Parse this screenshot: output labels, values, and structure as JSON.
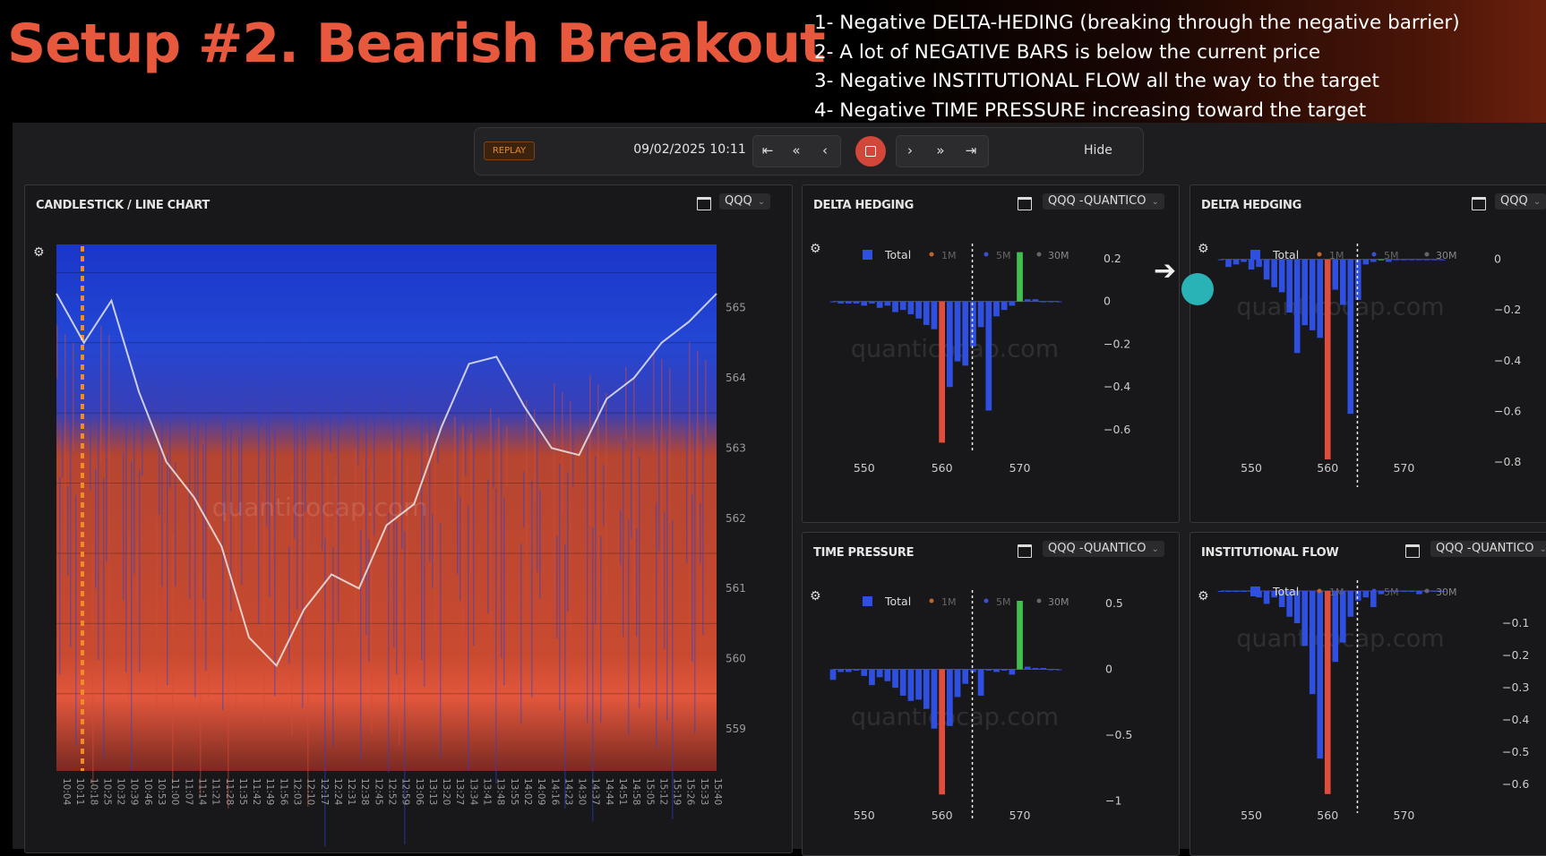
{
  "headline": "Setup #2. Bearish Breakout",
  "notes": [
    "1- Negative DELTA-HEDING (breaking through the negative barrier)",
    "2- A lot of NEGATIVE BARS is below the current price",
    "3- Negative INSTITUTIONAL FLOW all the way to the target",
    "4- Negative TIME PRESSURE increasing toward the target"
  ],
  "toolbar": {
    "replay_badge": "REPLAY",
    "datetime": "09/02/2025 10:11",
    "first_icon": "⇤",
    "fast_back_icon": "«",
    "back_icon": "‹",
    "forward_icon": "›",
    "fast_forward_icon": "»",
    "last_icon": "⇥",
    "hide_label": "Hide"
  },
  "colors": {
    "accent": "#e8583c",
    "positive": "#2f4fe0",
    "negative": "#e24c3a",
    "green": "#3fbf4f"
  },
  "main_chart": {
    "title": "CANDLESTICK / LINE CHART",
    "symbol": "QQQ",
    "watermark": "quanticocap.com",
    "price_ticks": [
      "565",
      "564",
      "563",
      "562",
      "561",
      "560",
      "559"
    ],
    "time_ticks": [
      "10:04",
      "10:11",
      "10:18",
      "10:25",
      "10:32",
      "10:39",
      "10:46",
      "10:53",
      "11:00",
      "11:07",
      "11:14",
      "11:21",
      "11:28",
      "11:35",
      "11:42",
      "11:49",
      "11:56",
      "12:03",
      "12:10",
      "12:17",
      "12:24",
      "12:31",
      "12:38",
      "12:45",
      "12:52",
      "12:59",
      "13:06",
      "13:13",
      "13:20",
      "13:27",
      "13:34",
      "13:41",
      "13:48",
      "13:55",
      "14:02",
      "14:09",
      "14:16",
      "14:23",
      "14:30",
      "14:37",
      "14:44",
      "14:51",
      "14:58",
      "15:05",
      "15:12",
      "15:19",
      "15:26",
      "15:33",
      "15:40"
    ]
  },
  "panels": {
    "delta_hedging_1": {
      "title": "DELTA HEDGING",
      "symbol": "QQQ -QUANTICO",
      "y_ticks": [
        "0.2",
        "0",
        "−0.2",
        "−0.4",
        "−0.6"
      ],
      "x_ticks": [
        "550",
        "560",
        "570"
      ]
    },
    "delta_hedging_2": {
      "title": "DELTA HEDGING",
      "symbol": "QQQ",
      "y_ticks": [
        "0",
        "−0.2",
        "−0.4",
        "−0.6",
        "−0.8"
      ],
      "x_ticks": [
        "550",
        "560",
        "570"
      ]
    },
    "time_pressure": {
      "title": "TIME PRESSURE",
      "symbol": "QQQ -QUANTICO",
      "y_ticks": [
        "0.5",
        "0",
        "−0.5",
        "−1"
      ],
      "x_ticks": [
        "550",
        "560",
        "570"
      ]
    },
    "institutional_flow": {
      "title": "INSTITUTIONAL FLOW",
      "symbol": "QQQ -QUANTICO",
      "y_ticks": [
        "−0.1",
        "−0.2",
        "−0.3",
        "−0.4",
        "−0.5",
        "−0.6"
      ],
      "x_ticks": [
        "550",
        "560",
        "570"
      ]
    }
  },
  "legend": [
    "Total",
    "1M",
    "5M",
    "30M"
  ],
  "watermark": "quanticocap.com",
  "chart_data": [
    {
      "type": "line",
      "title": "CANDLESTICK / LINE CHART",
      "ylim": [
        558.4,
        565.9
      ],
      "series": [
        {
          "name": "QQQ",
          "x": [
            "10:04",
            "10:18",
            "10:32",
            "10:46",
            "11:00",
            "11:14",
            "11:28",
            "11:42",
            "11:56",
            "12:10",
            "12:24",
            "12:38",
            "12:52",
            "13:06",
            "13:20",
            "13:34",
            "13:48",
            "14:02",
            "14:16",
            "14:30",
            "14:44",
            "14:58",
            "15:12",
            "15:26",
            "15:40"
          ],
          "values": [
            565.2,
            564.5,
            565.1,
            563.8,
            562.8,
            562.3,
            561.6,
            560.3,
            559.9,
            560.7,
            561.2,
            561.0,
            561.9,
            562.2,
            563.3,
            564.2,
            564.3,
            563.6,
            563.0,
            562.9,
            563.7,
            564.0,
            564.5,
            564.8,
            565.2
          ]
        }
      ]
    },
    {
      "type": "bar",
      "title": "DELTA HEDGING",
      "ylim": [
        -0.65,
        0.22
      ],
      "x": [
        546,
        547,
        548,
        549,
        550,
        551,
        552,
        553,
        554,
        555,
        556,
        557,
        558,
        559,
        560,
        561,
        562,
        563,
        564,
        565,
        566,
        567,
        568,
        569,
        570,
        571,
        572,
        573,
        574,
        575
      ],
      "series": [
        {
          "name": "Total",
          "values": [
            0,
            -0.01,
            -0.01,
            -0.01,
            -0.02,
            -0.01,
            -0.03,
            -0.02,
            -0.05,
            -0.04,
            -0.06,
            -0.08,
            -0.11,
            -0.13,
            -0.66,
            -0.4,
            -0.28,
            -0.3,
            -0.21,
            -0.12,
            -0.51,
            -0.07,
            -0.04,
            -0.02,
            0.23,
            0.01,
            0.01,
            0.0,
            0.0,
            0.0
          ],
          "colors": [
            "blue",
            "blue",
            "blue",
            "blue",
            "blue",
            "blue",
            "blue",
            "blue",
            "blue",
            "blue",
            "blue",
            "blue",
            "blue",
            "blue",
            "red",
            "blue",
            "blue",
            "blue",
            "blue",
            "blue",
            "blue",
            "blue",
            "blue",
            "blue",
            "green",
            "blue",
            "blue",
            "blue",
            "blue",
            "blue"
          ]
        }
      ],
      "legend": [
        "Total",
        "1M",
        "5M",
        "30M"
      ]
    },
    {
      "type": "bar",
      "title": "DELTA HEDGING",
      "ylim": [
        -0.85,
        0.02
      ],
      "x": [
        546,
        547,
        548,
        549,
        550,
        551,
        552,
        553,
        554,
        555,
        556,
        557,
        558,
        559,
        560,
        561,
        562,
        563,
        564,
        565,
        566,
        567,
        568,
        569,
        570,
        571,
        572,
        573,
        574,
        575
      ],
      "series": [
        {
          "name": "Total",
          "values": [
            0,
            -0.03,
            -0.02,
            -0.01,
            -0.04,
            -0.03,
            -0.08,
            -0.11,
            -0.13,
            -0.21,
            -0.37,
            -0.26,
            -0.28,
            -0.31,
            -0.79,
            -0.12,
            -0.18,
            -0.61,
            -0.16,
            -0.02,
            -0.01,
            0.0,
            -0.01,
            0.0,
            0.0,
            0.0,
            0.0,
            0.0,
            0.0,
            0.0
          ],
          "colors": [
            "blue",
            "blue",
            "blue",
            "blue",
            "blue",
            "blue",
            "blue",
            "blue",
            "blue",
            "blue",
            "blue",
            "blue",
            "blue",
            "blue",
            "red",
            "blue",
            "blue",
            "blue",
            "blue",
            "blue",
            "blue",
            "green",
            "blue",
            "blue",
            "blue",
            "blue",
            "blue",
            "blue",
            "blue",
            "blue"
          ]
        }
      ],
      "legend": [
        "Total",
        "1M",
        "5M",
        "30M"
      ]
    },
    {
      "type": "bar",
      "title": "TIME PRESSURE",
      "ylim": [
        -1.05,
        0.52
      ],
      "x": [
        546,
        547,
        548,
        549,
        550,
        551,
        552,
        553,
        554,
        555,
        556,
        557,
        558,
        559,
        560,
        561,
        562,
        563,
        564,
        565,
        566,
        567,
        568,
        569,
        570,
        571,
        572,
        573,
        574,
        575
      ],
      "series": [
        {
          "name": "Total",
          "values": [
            -0.08,
            -0.02,
            -0.02,
            -0.01,
            -0.05,
            -0.12,
            -0.06,
            -0.09,
            -0.14,
            -0.2,
            -0.24,
            -0.23,
            -0.3,
            -0.45,
            -0.95,
            -0.43,
            -0.21,
            -0.11,
            -0.02,
            -0.2,
            -0.01,
            -0.02,
            -0.01,
            -0.04,
            0.52,
            0.02,
            0.01,
            0.01,
            0.0,
            0.0
          ],
          "colors": [
            "blue",
            "blue",
            "blue",
            "blue",
            "blue",
            "blue",
            "blue",
            "blue",
            "blue",
            "blue",
            "blue",
            "blue",
            "blue",
            "blue",
            "red",
            "blue",
            "blue",
            "blue",
            "blue",
            "blue",
            "blue",
            "blue",
            "blue",
            "blue",
            "green",
            "blue",
            "blue",
            "blue",
            "blue",
            "blue"
          ]
        }
      ],
      "legend": [
        "Total",
        "1M",
        "5M",
        "30M"
      ]
    },
    {
      "type": "bar",
      "title": "INSTITUTIONAL FLOW",
      "ylim": [
        -0.65,
        0.0
      ],
      "x": [
        546,
        547,
        548,
        549,
        550,
        551,
        552,
        553,
        554,
        555,
        556,
        557,
        558,
        559,
        560,
        561,
        562,
        563,
        564,
        565,
        566,
        567,
        568,
        569,
        570,
        571,
        572,
        573,
        574,
        575
      ],
      "series": [
        {
          "name": "Total",
          "values": [
            0,
            0,
            0,
            0,
            0,
            -0.02,
            -0.04,
            -0.02,
            -0.05,
            -0.08,
            -0.1,
            -0.17,
            -0.32,
            -0.52,
            -0.63,
            -0.22,
            -0.16,
            -0.08,
            -0.03,
            -0.02,
            -0.05,
            -0.01,
            0,
            0,
            0,
            0,
            -0.01,
            0,
            0,
            0
          ],
          "colors": [
            "blue",
            "blue",
            "blue",
            "blue",
            "blue",
            "blue",
            "blue",
            "blue",
            "blue",
            "blue",
            "blue",
            "blue",
            "blue",
            "blue",
            "red",
            "blue",
            "blue",
            "blue",
            "blue",
            "blue",
            "blue",
            "blue",
            "blue",
            "blue",
            "blue",
            "blue",
            "blue",
            "blue",
            "blue",
            "blue"
          ]
        }
      ],
      "legend": [
        "Total",
        "1M",
        "5M",
        "30M"
      ]
    }
  ]
}
